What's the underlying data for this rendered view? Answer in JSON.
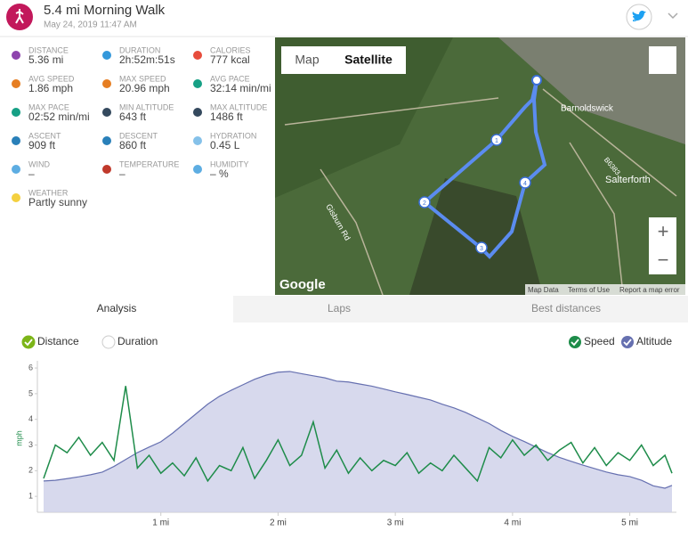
{
  "header": {
    "title": "5.4 mi Morning Walk",
    "date": "May 24, 2019 11:47 AM"
  },
  "stats": [
    {
      "label": "DISTANCE",
      "value": "5.36 mi",
      "color": "#8e44ad"
    },
    {
      "label": "DURATION",
      "value": "2h:52m:51s",
      "color": "#3498db"
    },
    {
      "label": "CALORIES",
      "value": "777 kcal",
      "color": "#e74c3c"
    },
    {
      "label": "AVG SPEED",
      "value": "1.86 mph",
      "color": "#e67e22"
    },
    {
      "label": "MAX SPEED",
      "value": "20.96 mph",
      "color": "#e67e22"
    },
    {
      "label": "AVG PACE",
      "value": "32:14 min/mi",
      "color": "#16a085"
    },
    {
      "label": "MAX PACE",
      "value": "02:52 min/mi",
      "color": "#16a085"
    },
    {
      "label": "MIN ALTITUDE",
      "value": "643 ft",
      "color": "#34495e"
    },
    {
      "label": "MAX ALTITUDE",
      "value": "1486 ft",
      "color": "#34495e"
    },
    {
      "label": "ASCENT",
      "value": "909 ft",
      "color": "#2980b9"
    },
    {
      "label": "DESCENT",
      "value": "860 ft",
      "color": "#2980b9"
    },
    {
      "label": "HYDRATION",
      "value": "0.45 L",
      "color": "#85c1e9"
    },
    {
      "label": "WIND",
      "value": "–",
      "color": "#5dade2"
    },
    {
      "label": "TEMPERATURE",
      "value": "–",
      "color": "#c0392b"
    },
    {
      "label": "HUMIDITY",
      "value": "– %",
      "color": "#5dade2"
    },
    {
      "label": "WEATHER",
      "value": "Partly sunny",
      "color": "#f4d03f"
    }
  ],
  "map": {
    "buttons": [
      "Map",
      "Satellite"
    ],
    "places": [
      "Barnoldswick",
      "Salterforth",
      "Gisburn Rd",
      "B6383"
    ],
    "markers": [
      "1",
      "2",
      "3",
      "4"
    ],
    "logo": "Google",
    "footer": [
      "Map Data",
      "Terms of Use",
      "Report a map error"
    ],
    "zoom": [
      "+",
      "−"
    ]
  },
  "tabs": [
    "Analysis",
    "Laps",
    "Best distances"
  ],
  "chart_data": {
    "type": "line",
    "y_label": "mph",
    "x_modes": [
      {
        "label": "Distance",
        "checked": true
      },
      {
        "label": "Duration",
        "checked": false
      }
    ],
    "x": [
      0,
      0.1,
      0.2,
      0.3,
      0.4,
      0.5,
      0.6,
      0.7,
      0.8,
      0.9,
      1.0,
      1.1,
      1.2,
      1.3,
      1.4,
      1.5,
      1.6,
      1.7,
      1.8,
      1.9,
      2.0,
      2.1,
      2.2,
      2.3,
      2.4,
      2.5,
      2.6,
      2.7,
      2.8,
      2.9,
      3.0,
      3.1,
      3.2,
      3.3,
      3.4,
      3.5,
      3.6,
      3.7,
      3.8,
      3.9,
      4.0,
      4.1,
      4.2,
      4.3,
      4.4,
      4.5,
      4.6,
      4.7,
      4.8,
      4.9,
      5.0,
      5.1,
      5.2,
      5.3,
      5.36
    ],
    "xlim": [
      0,
      5.36
    ],
    "xticks": [
      {
        "value": 1,
        "label": "1 mi"
      },
      {
        "value": 2,
        "label": "2 mi"
      },
      {
        "value": 3,
        "label": "3 mi"
      },
      {
        "value": 4,
        "label": "4 mi"
      },
      {
        "value": 5,
        "label": "5 mi"
      }
    ],
    "ylim": [
      0.38,
      6.28
    ],
    "yticks": [
      1,
      2,
      3,
      4,
      5,
      6
    ],
    "y2lim": [
      469,
      1563
    ],
    "series": [
      {
        "name": "Speed",
        "color": "#1e8c4a",
        "axis": "y",
        "values": [
          1.7,
          3.0,
          2.7,
          3.3,
          2.6,
          3.1,
          2.4,
          5.3,
          2.1,
          2.6,
          1.9,
          2.3,
          1.8,
          2.5,
          1.6,
          2.2,
          2.0,
          2.9,
          1.7,
          2.4,
          3.2,
          2.2,
          2.6,
          3.9,
          2.1,
          2.8,
          1.9,
          2.5,
          2.0,
          2.4,
          2.2,
          2.7,
          1.9,
          2.3,
          2.0,
          2.6,
          2.1,
          1.6,
          2.9,
          2.5,
          3.2,
          2.6,
          3.0,
          2.4,
          2.8,
          3.1,
          2.3,
          2.9,
          2.2,
          2.7,
          2.4,
          3.0,
          2.2,
          2.6,
          1.9
        ]
      },
      {
        "name": "Altitude",
        "color": "#6670b0",
        "axis": "y2",
        "values": [
          695,
          700,
          712,
          725,
          740,
          759,
          800,
          850,
          900,
          940,
          978,
          1040,
          1110,
          1180,
          1250,
          1307,
          1350,
          1390,
          1430,
          1460,
          1481,
          1486,
          1470,
          1455,
          1440,
          1416,
          1410,
          1395,
          1380,
          1360,
          1339,
          1320,
          1300,
          1280,
          1250,
          1223,
          1190,
          1150,
          1110,
          1060,
          1017,
          980,
          940,
          900,
          865,
          837,
          810,
          785,
          760,
          740,
          727,
          700,
          660,
          643,
          663
        ]
      }
    ]
  }
}
